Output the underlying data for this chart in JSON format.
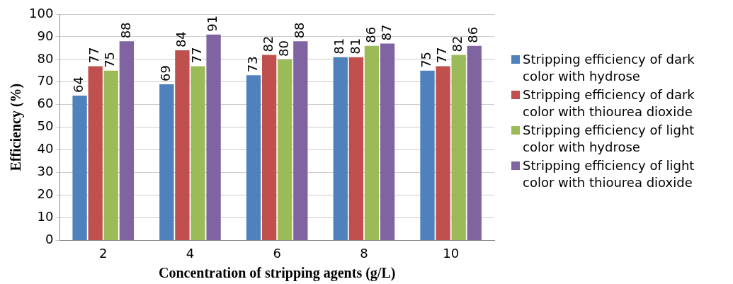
{
  "chart_data": {
    "type": "bar",
    "xlabel": "Concentration of stripping agents (g/L)",
    "ylabel": "Efficiency (%)",
    "categories": [
      "2",
      "4",
      "6",
      "8",
      "10"
    ],
    "series": [
      {
        "name": "Stripping efficiency of dark color with hydrose",
        "color": "#4f81bd",
        "values": [
          64,
          69,
          73,
          81,
          75
        ]
      },
      {
        "name": "Stripping efficiency of dark color with thiourea dioxide",
        "color": "#c0504d",
        "values": [
          77,
          84,
          82,
          81,
          77
        ]
      },
      {
        "name": "Stripping efficiency of light color with hydrose",
        "color": "#9bbb59",
        "values": [
          75,
          77,
          80,
          86,
          82
        ]
      },
      {
        "name": "Stripping efficiency of light color with thiourea dioxide",
        "color": "#8064a2",
        "values": [
          88,
          91,
          88,
          87,
          86
        ]
      }
    ],
    "ylim": [
      0,
      100
    ],
    "yticks": [
      0,
      10,
      20,
      30,
      40,
      50,
      60,
      70,
      80,
      90,
      100
    ],
    "grid": "y",
    "legend": "right",
    "data_labels": true
  }
}
